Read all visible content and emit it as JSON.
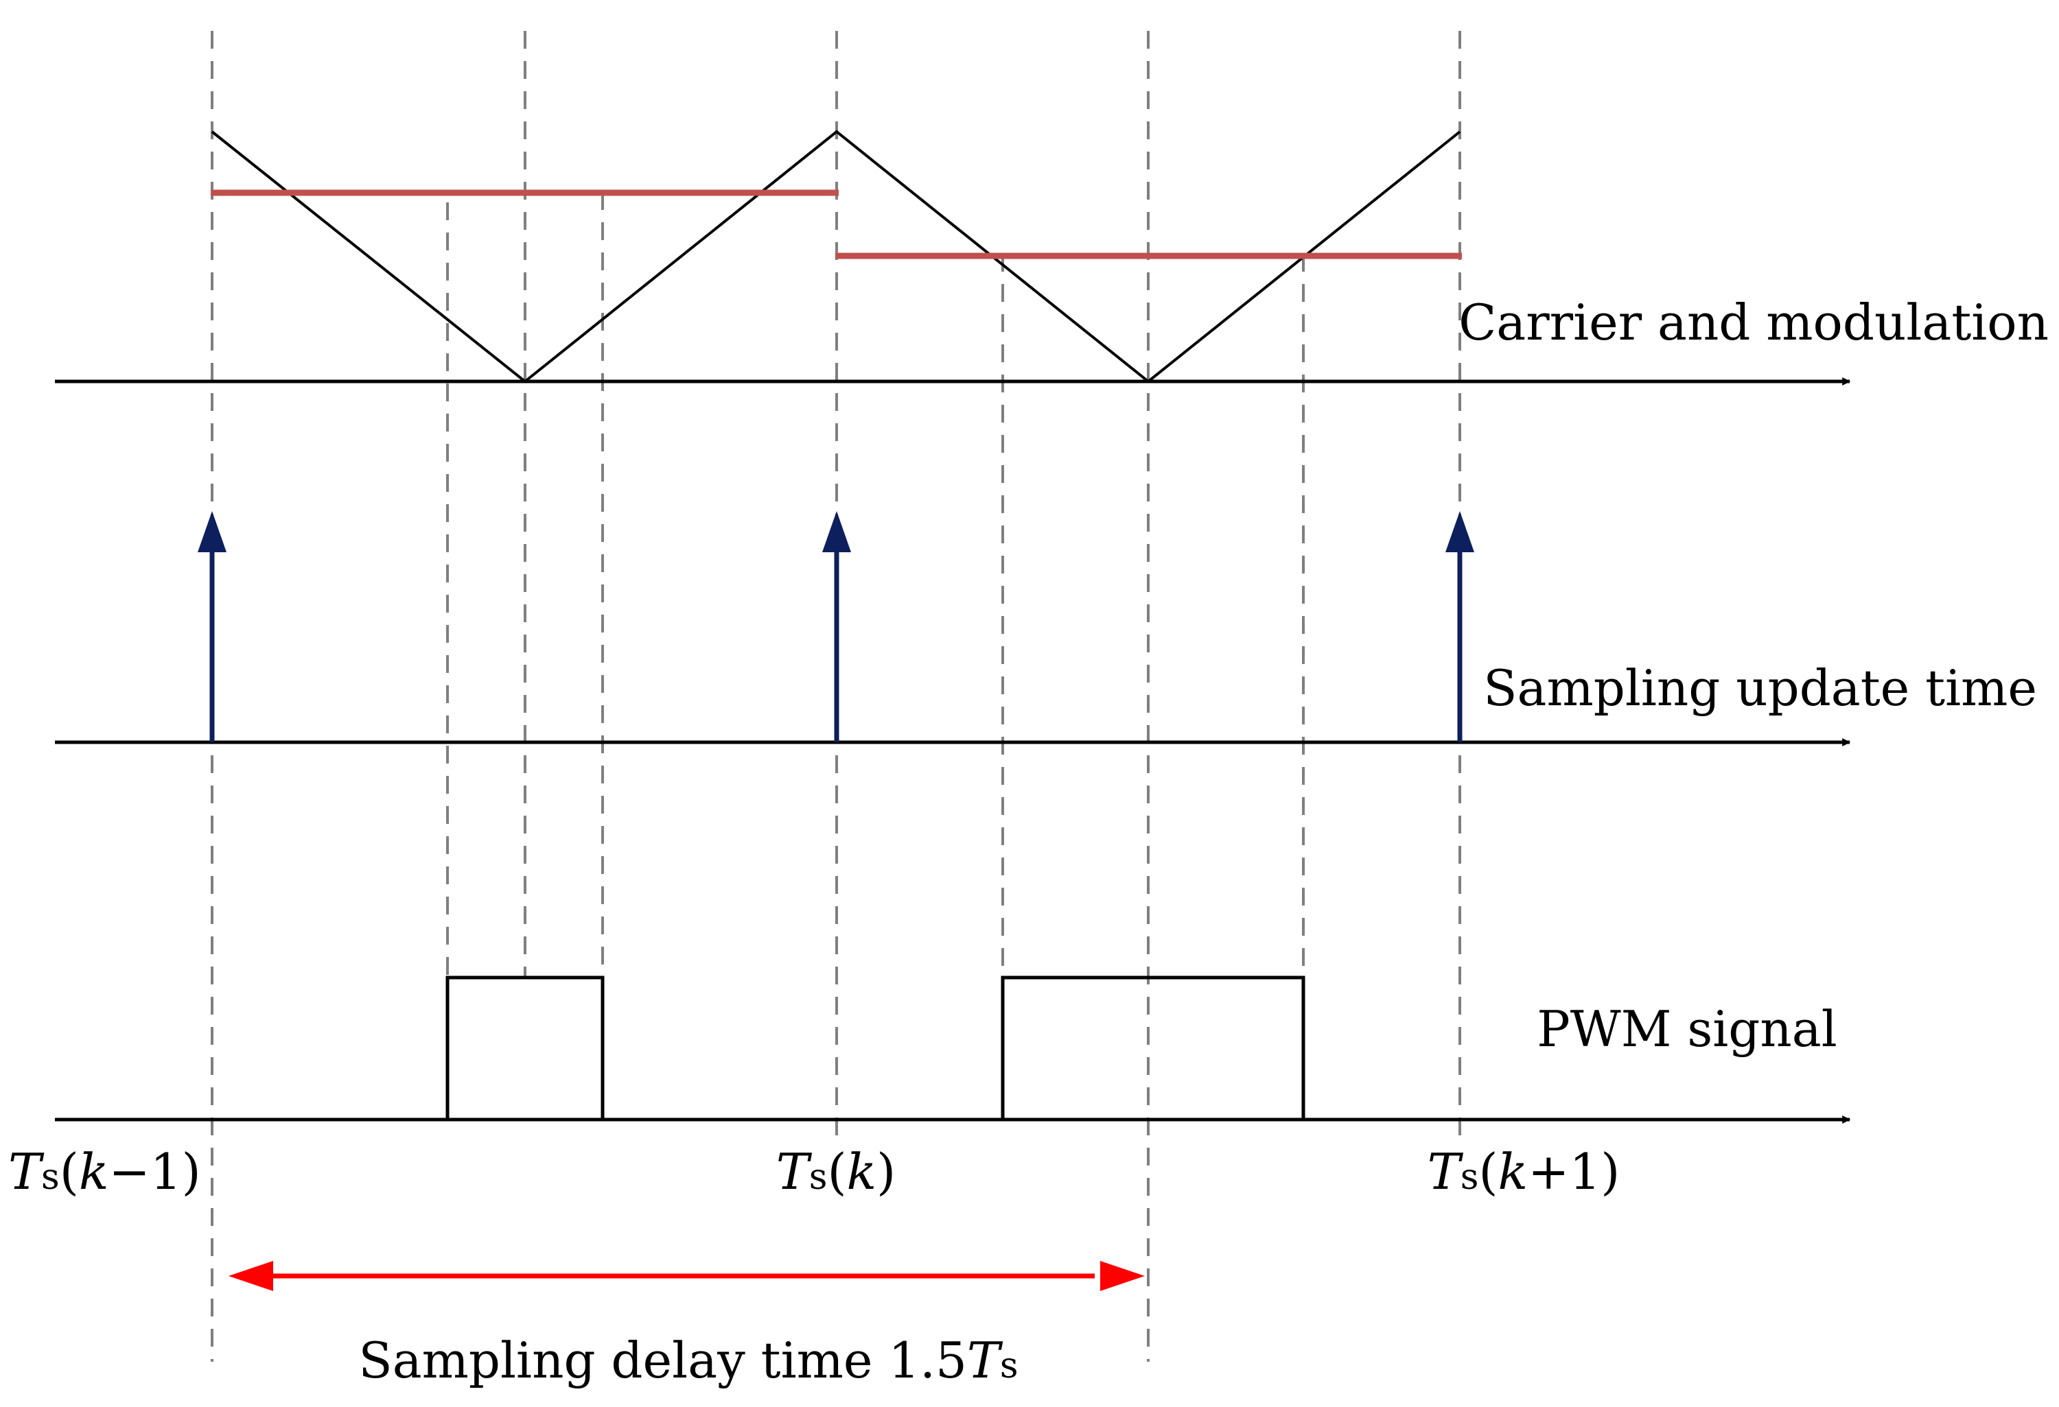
{
  "labels": {
    "carrier_modulation": "Carrier and modulation",
    "sampling_update": "Sampling update time",
    "pwm_signal": "PWM signal",
    "delay_prefix": "Sampling delay time 1.5"
  },
  "tick_labels": [
    {
      "sym": "T",
      "sub": "s",
      "open": "(",
      "k": "k",
      "tail": "−1)"
    },
    {
      "sym": "T",
      "sub": "s",
      "open": "(",
      "k": "k",
      "tail": ")"
    },
    {
      "sym": "T",
      "sub": "s",
      "open": "(",
      "k": "k",
      "tail": "+1)"
    }
  ],
  "delay_symbol": {
    "sym": "T",
    "sub": "s"
  },
  "colors": {
    "axis": "#000000",
    "guide": "#7f7f7f",
    "modulation": "#c0504d",
    "sampling_arrow": "#0d1f5c",
    "delay_arrow": "#ff0000"
  }
}
